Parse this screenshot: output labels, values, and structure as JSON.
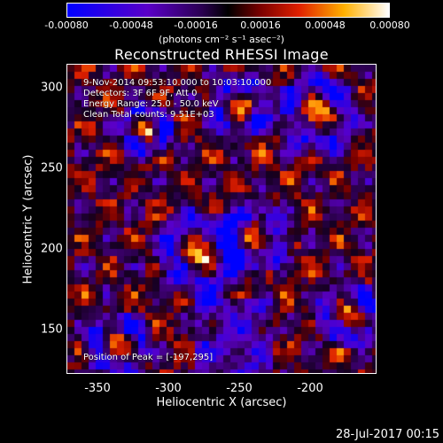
{
  "colorbar": {
    "ticks": [
      "-0.00080",
      "-0.00048",
      "-0.00016",
      "0.00016",
      "0.00048",
      "0.00080"
    ],
    "units": "(photons cm⁻² s⁻¹ asec⁻²)"
  },
  "title": "Reconstructed RHESSI Image",
  "info": {
    "line1": "9-Nov-2014 09:53:10.000 to 10:03:10.000",
    "line2": "Detectors: 3F 6F 9F, Att 0",
    "line3": "Energy Range: 25.0 - 50.0 keV",
    "line4": "Clean    Total counts: 9.51E+03",
    "peak": "Position of Peak = [-197,295]"
  },
  "axes": {
    "xlabel": "Heliocentric X (arcsec)",
    "ylabel": "Heliocentric Y (arcsec)",
    "xticks": [
      "-350",
      "-300",
      "-250",
      "-200"
    ],
    "yticks": [
      "300",
      "250",
      "200",
      "150"
    ]
  },
  "footer": "28-Jul-2017 00:15",
  "colors": {
    "scale": [
      "#0000ff",
      "#7a00b5",
      "#1a0030",
      "#000000",
      "#8b0000",
      "#ff4500",
      "#ffd700",
      "#ffffff"
    ]
  }
}
